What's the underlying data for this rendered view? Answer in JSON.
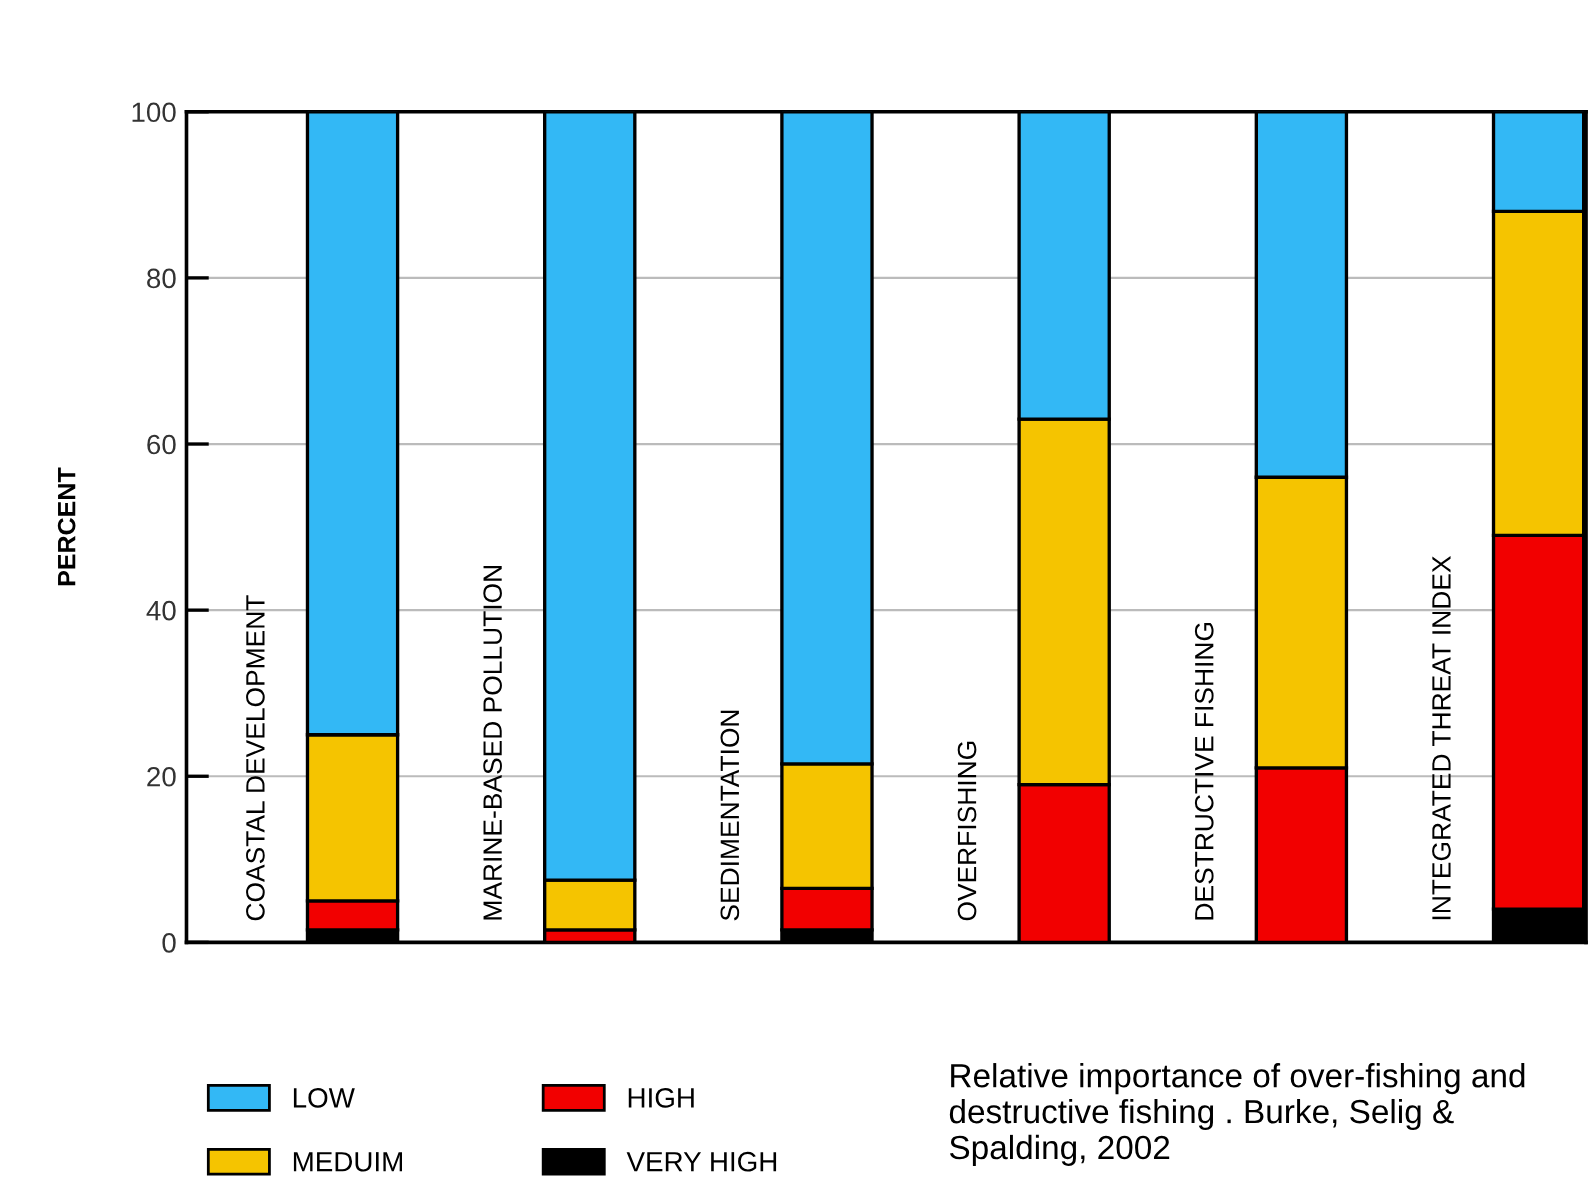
{
  "chart_data": {
    "type": "bar",
    "stacked": true,
    "ylabel": "PERCENT",
    "categories": [
      "COASTAL DEVELOPMENT",
      "MARINE-BASED POLLUTION",
      "SEDIMENTATION",
      "OVERFISHING",
      "DESTRUCTIVE FISHING",
      "INTEGRATED THREAT INDEX"
    ],
    "series": [
      {
        "name": "VERY HIGH",
        "color": "#000000",
        "values": [
          1.5,
          null,
          1.5,
          0,
          0,
          4
        ]
      },
      {
        "name": "HIGH",
        "color": "#f20000",
        "values": [
          3.5,
          1.5,
          5,
          19,
          21,
          45
        ]
      },
      {
        "name": "MEDUIM",
        "color": "#f5c400",
        "values": [
          20,
          6,
          15,
          44,
          35,
          39
        ]
      },
      {
        "name": "LOW",
        "color": "#33b8f5",
        "values": [
          75,
          92.5,
          78.5,
          37,
          44,
          12
        ]
      }
    ],
    "ylim": [
      0,
      100
    ],
    "yticks": [
      0,
      20,
      40,
      60,
      80,
      100
    ],
    "grid": "y",
    "legend": "bottom",
    "annotations": [
      "Relative importance of over-fishing and destructive fishing . Burke, Selig & Spalding, 2002"
    ]
  }
}
